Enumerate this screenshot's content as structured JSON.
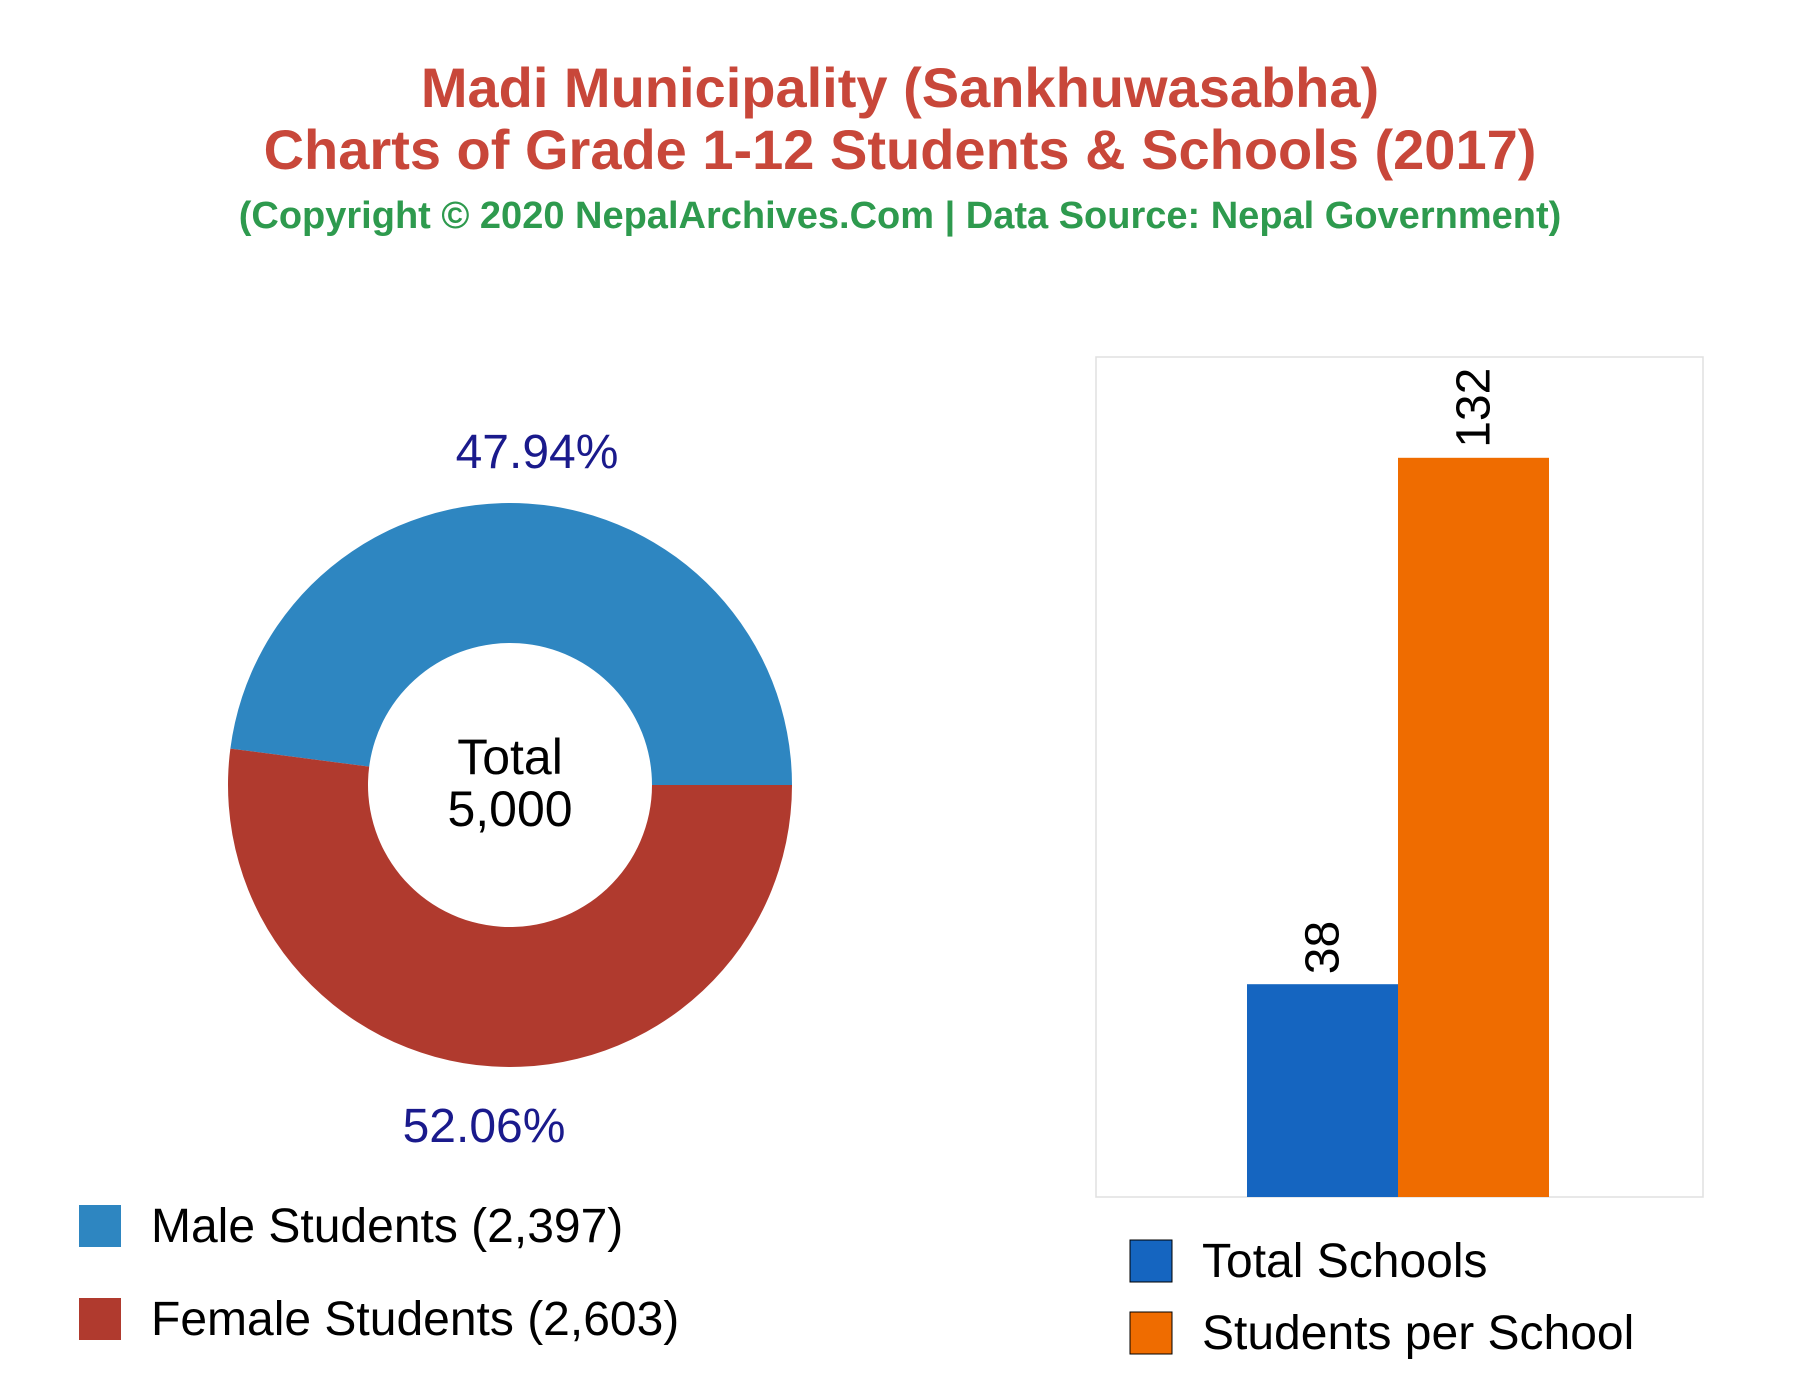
{
  "title_line1": "Madi Municipality (Sankhuwasabha)",
  "title_line2": "Charts of Grade 1-12 Students & Schools (2017)",
  "subtitle": "(Copyright © 2020 NepalArchives.Com | Data Source: Nepal Government)",
  "chart_data": [
    {
      "type": "pie",
      "variant": "donut",
      "center_label": [
        "Total",
        "5,000"
      ],
      "slices": [
        {
          "name": "Male Students",
          "value": 2397,
          "percent_label": "47.94%",
          "color": "#2e86c1",
          "legend": "Male Students (2,397)"
        },
        {
          "name": "Female Students",
          "value": 2603,
          "percent_label": "52.06%",
          "color": "#b03a2e",
          "legend": "Female Students (2,603)"
        }
      ],
      "label_color": "#1a1a8c",
      "legend_placement": "bottom-left"
    },
    {
      "type": "bar",
      "categories": [
        "Total Schools",
        "Students per School"
      ],
      "values": [
        38,
        132
      ],
      "value_labels": [
        "38",
        "132"
      ],
      "colors": [
        "#1565c0",
        "#ef6c00"
      ],
      "ylim": [
        0,
        150
      ],
      "grid": false,
      "legend": [
        "Total Schools",
        "Students per School"
      ],
      "legend_placement": "bottom"
    }
  ]
}
